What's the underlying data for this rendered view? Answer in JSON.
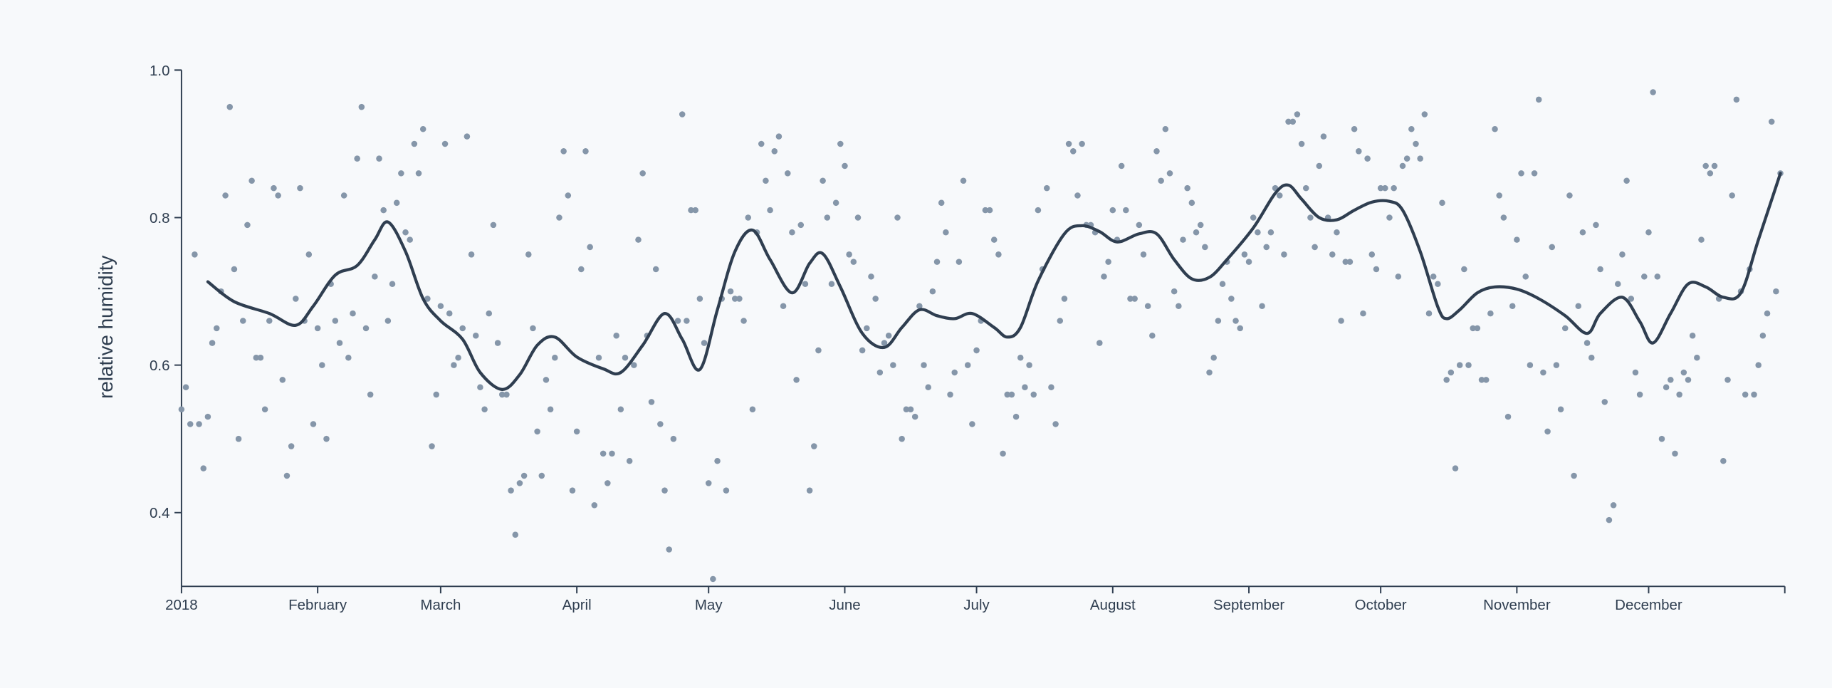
{
  "chart_data": {
    "type": "scatter",
    "ylabel": "relative humidity",
    "xlim": [
      0,
      365
    ],
    "xticks": [
      {
        "value": 0,
        "label": "2018"
      },
      {
        "value": 31,
        "label": "February"
      },
      {
        "value": 59,
        "label": "March"
      },
      {
        "value": 90,
        "label": "April"
      },
      {
        "value": 120,
        "label": "May"
      },
      {
        "value": 151,
        "label": "June"
      },
      {
        "value": 181,
        "label": "July"
      },
      {
        "value": 212,
        "label": "August"
      },
      {
        "value": 243,
        "label": "September"
      },
      {
        "value": 273,
        "label": "October"
      },
      {
        "value": 304,
        "label": "November"
      },
      {
        "value": 334,
        "label": "December"
      }
    ],
    "ylim": [
      0.3,
      1
    ],
    "yticks": [
      0.4,
      0.6,
      0.8,
      {
        "value": 1,
        "label": "1.0"
      }
    ],
    "points": {
      "color": "#8596a9",
      "x": [
        0,
        1,
        2,
        3,
        4,
        5,
        6,
        7,
        8,
        9,
        10,
        11,
        12,
        13,
        14,
        15,
        16,
        17,
        18,
        19,
        20,
        21,
        22,
        23,
        24,
        25,
        26,
        27,
        28,
        29,
        30,
        31,
        32,
        33,
        34,
        35,
        36,
        37,
        38,
        39,
        40,
        41,
        42,
        43,
        44,
        45,
        46,
        47,
        48,
        49,
        50,
        51,
        52,
        53,
        54,
        55,
        56,
        57,
        58,
        59,
        60,
        61,
        62,
        63,
        64,
        65,
        66,
        67,
        68,
        69,
        70,
        71,
        72,
        73,
        74,
        75,
        76,
        77,
        78,
        79,
        80,
        81,
        82,
        83,
        84,
        85,
        86,
        87,
        88,
        89,
        90,
        91,
        92,
        93,
        94,
        95,
        96,
        97,
        98,
        99,
        100,
        101,
        102,
        103,
        104,
        105,
        106,
        107,
        108,
        109,
        110,
        111,
        112,
        113,
        114,
        115,
        116,
        117,
        118,
        119,
        120,
        121,
        122,
        123,
        124,
        125,
        126,
        127,
        128,
        129,
        130,
        131,
        132,
        133,
        134,
        135,
        136,
        137,
        138,
        139,
        140,
        141,
        142,
        143,
        144,
        145,
        146,
        147,
        148,
        149,
        150,
        151,
        152,
        153,
        154,
        155,
        156,
        157,
        158,
        159,
        160,
        161,
        162,
        163,
        164,
        165,
        166,
        167,
        168,
        169,
        170,
        171,
        172,
        173,
        174,
        175,
        176,
        177,
        178,
        179,
        180,
        181,
        182,
        183,
        184,
        185,
        186,
        187,
        188,
        189,
        190,
        191,
        192,
        193,
        194,
        195,
        196,
        197,
        198,
        199,
        200,
        201,
        202,
        203,
        204,
        205,
        206,
        207,
        208,
        209,
        210,
        211,
        212,
        213,
        214,
        215,
        216,
        217,
        218,
        219,
        220,
        221,
        222,
        223,
        224,
        225,
        226,
        227,
        228,
        229,
        230,
        231,
        232,
        233,
        234,
        235,
        236,
        237,
        238,
        239,
        240,
        241,
        242,
        243,
        244,
        245,
        246,
        247,
        248,
        249,
        250,
        251,
        252,
        253,
        254,
        255,
        256,
        257,
        258,
        259,
        260,
        261,
        262,
        263,
        264,
        265,
        266,
        267,
        268,
        269,
        270,
        271,
        272,
        273,
        274,
        275,
        276,
        277,
        278,
        279,
        280,
        281,
        282,
        283,
        284,
        285,
        286,
        287,
        288,
        289,
        290,
        291,
        292,
        293,
        294,
        295,
        296,
        297,
        298,
        299,
        300,
        301,
        302,
        303,
        304,
        305,
        306,
        307,
        308,
        309,
        310,
        311,
        312,
        313,
        314,
        315,
        316,
        317,
        318,
        319,
        320,
        321,
        322,
        323,
        324,
        325,
        326,
        327,
        328,
        329,
        330,
        331,
        332,
        333,
        334,
        335,
        336,
        337,
        338,
        339,
        340,
        341,
        342,
        343,
        344,
        345,
        346,
        347,
        348,
        349,
        350,
        351,
        352,
        353,
        354,
        355,
        356,
        357,
        358,
        359,
        360,
        361,
        362,
        363,
        364
      ],
      "values": [
        0.54,
        0.57,
        0.52,
        0.75,
        0.52,
        0.46,
        0.53,
        0.63,
        0.65,
        0.7,
        0.83,
        0.95,
        0.73,
        0.5,
        0.66,
        0.79,
        0.85,
        0.61,
        0.61,
        0.54,
        0.66,
        0.84,
        0.83,
        0.58,
        0.45,
        0.49,
        0.69,
        0.84,
        0.66,
        0.75,
        0.52,
        0.65,
        0.6,
        0.5,
        0.71,
        0.66,
        0.63,
        0.83,
        0.61,
        0.67,
        0.88,
        0.95,
        0.65,
        0.56,
        0.72,
        0.88,
        0.81,
        0.66,
        0.71,
        0.82,
        0.86,
        0.78,
        0.77,
        0.9,
        0.86,
        0.92,
        0.69,
        0.49,
        0.56,
        0.68,
        0.9,
        0.67,
        0.6,
        0.61,
        0.65,
        0.91,
        0.75,
        0.64,
        0.57,
        0.54,
        0.67,
        0.79,
        0.63,
        0.56,
        0.56,
        0.43,
        0.37,
        0.44,
        0.45,
        0.75,
        0.65,
        0.51,
        0.45,
        0.58,
        0.54,
        0.61,
        0.8,
        0.89,
        0.83,
        0.43,
        0.51,
        0.73,
        0.89,
        0.76,
        0.41,
        0.61,
        0.48,
        0.44,
        0.48,
        0.64,
        0.54,
        0.61,
        0.47,
        0.6,
        0.77,
        0.86,
        0.64,
        0.55,
        0.73,
        0.52,
        0.43,
        0.35,
        0.5,
        0.66,
        0.94,
        0.66,
        0.81,
        0.81,
        0.69,
        0.63,
        0.44,
        0.31,
        0.47,
        0.69,
        0.43,
        0.7,
        0.69,
        0.69,
        0.66,
        0.8,
        0.54,
        0.78,
        0.9,
        0.85,
        0.81,
        0.89,
        0.91,
        0.68,
        0.86,
        0.78,
        0.58,
        0.79,
        0.71,
        0.43,
        0.49,
        0.62,
        0.85,
        0.8,
        0.71,
        0.82,
        0.9,
        0.87,
        0.75,
        0.74,
        0.8,
        0.62,
        0.65,
        0.72,
        0.69,
        0.59,
        0.63,
        0.64,
        0.6,
        0.8,
        0.5,
        0.54,
        0.54,
        0.53,
        0.68,
        0.6,
        0.57,
        0.7,
        0.74,
        0.82,
        0.78,
        0.56,
        0.59,
        0.74,
        0.85,
        0.6,
        0.52,
        0.62,
        0.66,
        0.81,
        0.81,
        0.77,
        0.75,
        0.48,
        0.56,
        0.56,
        0.53,
        0.61,
        0.57,
        0.6,
        0.56,
        0.81,
        0.73,
        0.84,
        0.57,
        0.52,
        0.66,
        0.69,
        0.9,
        0.89,
        0.83,
        0.9,
        0.79,
        0.79,
        0.78,
        0.63,
        0.72,
        0.74,
        0.81,
        0.77,
        0.87,
        0.81,
        0.69,
        0.69,
        0.79,
        0.75,
        0.68,
        0.64,
        0.89,
        0.85,
        0.92,
        0.86,
        0.7,
        0.68,
        0.77,
        0.84,
        0.82,
        0.78,
        0.79,
        0.76,
        0.59,
        0.61,
        0.66,
        0.71,
        0.74,
        0.69,
        0.66,
        0.65,
        0.75,
        0.74,
        0.8,
        0.78,
        0.68,
        0.76,
        0.78,
        0.84,
        0.83,
        0.75,
        0.93,
        0.93,
        0.94,
        0.9,
        0.84,
        0.8,
        0.76,
        0.87,
        0.91,
        0.8,
        0.75,
        0.78,
        0.66,
        0.74,
        0.74,
        0.92,
        0.89,
        0.67,
        0.88,
        0.75,
        0.73,
        0.84,
        0.84,
        0.8,
        0.84,
        0.72,
        0.87,
        0.88,
        0.92,
        0.9,
        0.88,
        0.94,
        0.67,
        0.72,
        0.71,
        0.82,
        0.58,
        0.59,
        0.46,
        0.6,
        0.73,
        0.6,
        0.65,
        0.65,
        0.58,
        0.58,
        0.67,
        0.92,
        0.83,
        0.8,
        0.53,
        0.68,
        0.77,
        0.86,
        0.72,
        0.6,
        0.86,
        0.96,
        0.59,
        0.51,
        0.76,
        0.6,
        0.54,
        0.65,
        0.83,
        0.45,
        0.68,
        0.78,
        0.63,
        0.61,
        0.79,
        0.73,
        0.55,
        0.39,
        0.41,
        0.71,
        0.75,
        0.85,
        0.69,
        0.59,
        0.56,
        0.72,
        0.78,
        0.97,
        0.72,
        0.5,
        0.57,
        0.58,
        0.48,
        0.56,
        0.59,
        0.58,
        0.64,
        0.61,
        0.77,
        0.87,
        0.86,
        0.87,
        0.69,
        0.47,
        0.58,
        0.83,
        0.96,
        0.7,
        0.56,
        0.73,
        0.56,
        0.6,
        0.64,
        0.67,
        0.93,
        0.7,
        0.86
      ]
    },
    "trend": {
      "color": "#2f3e50",
      "x": [
        6,
        12,
        20,
        26,
        30,
        35,
        40,
        44,
        47,
        51,
        55,
        59,
        64,
        68,
        73,
        77,
        81,
        85,
        90,
        96,
        100,
        105,
        110,
        114,
        118,
        122,
        126,
        130,
        134,
        139,
        143,
        146,
        150,
        155,
        160,
        164,
        168,
        172,
        176,
        180,
        185,
        188,
        191,
        195,
        201,
        205,
        209,
        213,
        218,
        222,
        226,
        230,
        234,
        238,
        244,
        249,
        252,
        255,
        259,
        263,
        267,
        271,
        275,
        278,
        282,
        286,
        288,
        291,
        295,
        299,
        304,
        309,
        315,
        320,
        323,
        328,
        332,
        335,
        339,
        343,
        347,
        351,
        355,
        359,
        364
      ],
      "values": [
        0.713,
        0.686,
        0.67,
        0.654,
        0.68,
        0.722,
        0.735,
        0.77,
        0.794,
        0.754,
        0.69,
        0.66,
        0.635,
        0.59,
        0.567,
        0.587,
        0.627,
        0.638,
        0.611,
        0.595,
        0.59,
        0.627,
        0.67,
        0.635,
        0.594,
        0.675,
        0.754,
        0.783,
        0.743,
        0.698,
        0.738,
        0.751,
        0.706,
        0.643,
        0.624,
        0.651,
        0.675,
        0.667,
        0.663,
        0.67,
        0.651,
        0.638,
        0.651,
        0.714,
        0.778,
        0.789,
        0.781,
        0.767,
        0.778,
        0.778,
        0.743,
        0.717,
        0.719,
        0.743,
        0.786,
        0.833,
        0.844,
        0.825,
        0.8,
        0.797,
        0.81,
        0.821,
        0.822,
        0.81,
        0.754,
        0.679,
        0.663,
        0.675,
        0.698,
        0.706,
        0.703,
        0.69,
        0.667,
        0.643,
        0.67,
        0.692,
        0.659,
        0.63,
        0.67,
        0.71,
        0.706,
        0.692,
        0.698,
        0.77,
        0.86
      ]
    }
  }
}
